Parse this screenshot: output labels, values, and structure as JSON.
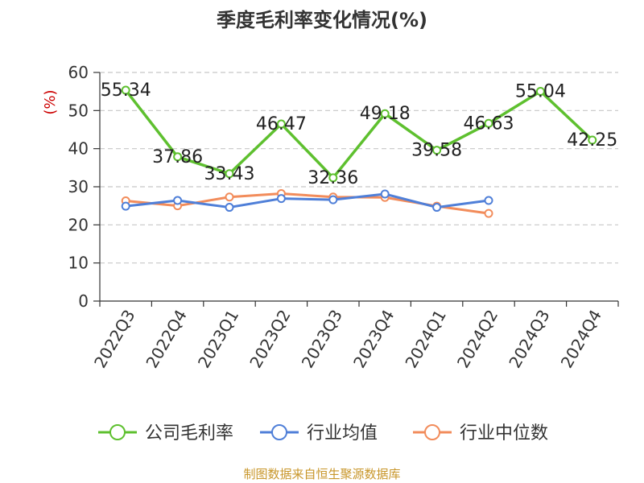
{
  "chart_data": {
    "type": "line",
    "title": "季度毛利率变化情况(%)",
    "ylabel": "(%)",
    "ylim": [
      0,
      60
    ],
    "yticks": [
      0,
      10,
      20,
      30,
      40,
      50,
      60
    ],
    "categories": [
      "2022Q3",
      "2022Q4",
      "2023Q1",
      "2023Q2",
      "2023Q3",
      "2023Q4",
      "2024Q1",
      "2024Q2",
      "2024Q3",
      "2024Q4"
    ],
    "grid": true,
    "legend_position": "bottom",
    "series": [
      {
        "name": "公司毛利率",
        "color": "#5ec02f",
        "values": [
          55.34,
          37.86,
          33.43,
          46.47,
          32.36,
          49.18,
          39.58,
          46.63,
          55.04,
          42.25
        ],
        "labels": [
          "55.34",
          "37.86",
          "33.43",
          "46.47",
          "32.36",
          "49.18",
          "39.58",
          "46.63",
          "55.04",
          "42.25"
        ]
      },
      {
        "name": "行业均值",
        "color": "#4f7fd8",
        "values": [
          24.9,
          26.4,
          24.6,
          26.9,
          26.6,
          28.1,
          24.6,
          26.4,
          null,
          null
        ]
      },
      {
        "name": "行业中位数",
        "color": "#f28c5b",
        "values": [
          26.3,
          25.0,
          27.3,
          28.2,
          27.3,
          27.2,
          24.9,
          23.0,
          null,
          null
        ]
      }
    ],
    "source": "制图数据来自恒生聚源数据库"
  }
}
